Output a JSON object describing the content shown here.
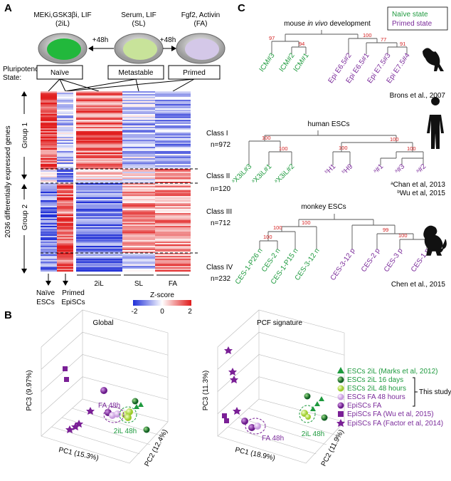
{
  "panel_a": {
    "label": "A",
    "conditions": [
      {
        "line1": "MEKi,GSK3βi, LIF",
        "line2": "(2iL)"
      },
      {
        "line1": "Serum, LIF",
        "line2": "(SL)"
      },
      {
        "line1": "Fgf2, Activin",
        "line2": "(FA)"
      }
    ],
    "arrow_labels": [
      "+48h",
      "+48h"
    ],
    "state_title": [
      "Pluripotency",
      "State:"
    ],
    "states": [
      "Naïve",
      "Metastable",
      "Primed"
    ],
    "y_label": "2036 differentially expressed genes",
    "groups": [
      "Group 1",
      "Group 2"
    ],
    "classes": [
      {
        "name": "Class I",
        "n": "n=972"
      },
      {
        "name": "Class II",
        "n": "n=120"
      },
      {
        "name": "Class III",
        "n": "n=712"
      },
      {
        "name": "Class IV",
        "n": "n=232"
      }
    ],
    "columns": [
      "2iL",
      "SL",
      "FA"
    ],
    "row_labels": [
      [
        "Naïve",
        "ESCs"
      ],
      [
        "Primed",
        "EpiSCs"
      ]
    ],
    "colorbar": {
      "title": "Z-score",
      "ticks": [
        -2,
        0,
        2
      ]
    }
  },
  "panel_c": {
    "label": "C",
    "legend": [
      "Naïve state",
      "Primed state"
    ],
    "trees": [
      {
        "title": [
          "mouse",
          "in vivo",
          "development"
        ],
        "leaves": [
          {
            "label": "ICM#3"
          },
          {
            "label": "ICM#2"
          },
          {
            "label": "ICM#1"
          },
          {
            "label": "Epi E6.5#2"
          },
          {
            "label": "Epi E6.5#1"
          },
          {
            "label": "Epi E7.5#3"
          },
          {
            "label": "Epi E7.5#4"
          }
        ],
        "bootstrap": [
          97,
          94,
          100,
          77,
          91
        ],
        "citations": [
          {
            "text": "Brons et al., 2007"
          }
        ]
      },
      {
        "title": [
          "human ESCs"
        ],
        "leaves": [
          {
            "sup": "a",
            "label": "X3iL#3"
          },
          {
            "sup": "a",
            "label": "X3iL#1"
          },
          {
            "sup": "a",
            "label": "X3iL#2"
          },
          {
            "sup": "b",
            "label": "H1"
          },
          {
            "sup": "b",
            "label": "H9"
          },
          {
            "sup": "a",
            "label": "#1"
          },
          {
            "sup": "a",
            "label": "#3"
          },
          {
            "sup": "a",
            "label": "#2"
          }
        ],
        "bootstrap": [
          100,
          100,
          100,
          100,
          100
        ],
        "citations": [
          {
            "sup": "a",
            "text": "Chan et al, 2013"
          },
          {
            "sup": "b",
            "text": "Wu et al, 2015"
          }
        ]
      },
      {
        "title": [
          "monkey ESCs"
        ],
        "leaves": [
          {
            "label": "CES-1-P26 n"
          },
          {
            "label": "CES-2 n"
          },
          {
            "label": "CES-1-P15 n"
          },
          {
            "label": "CES-3-12 n"
          },
          {
            "label": "CES-3-12 p"
          },
          {
            "label": "CES-2 p"
          },
          {
            "label": "CES-3 p"
          },
          {
            "label": "CES-1 p"
          }
        ],
        "bootstrap": [
          100,
          100,
          100,
          99,
          100
        ],
        "citations": [
          {
            "text": "Chen et al., 2015"
          }
        ]
      }
    ]
  },
  "panel_b": {
    "label": "B",
    "plots": [
      {
        "title": "Global",
        "pc1": "PC1 (15.3%)",
        "pc2": "PC2 (12.4%)",
        "pc3": "PC3 (9.97%)",
        "fa_label": "FA 48h",
        "il_label": "2iL 48h"
      },
      {
        "title": "PCF signature",
        "pc1": "PC1 (18.9%)",
        "pc2": "PC2 (11.9%)",
        "pc3": "PC3 (11.3%)",
        "fa_label": "FA 48h",
        "il_label": "2iL 48h"
      }
    ],
    "legend": [
      "ESCs 2iL (Marks et al, 2012)",
      "ESCs 2iL 16 days",
      "ESCs 2iL 48 hours",
      "ESCs FA 48 hours",
      "EpiSCs FA",
      "EpiSCs FA (Wu et al, 2015)",
      "EpiSCs FA (Factor et al, 2014)"
    ],
    "study_note": "This study"
  }
}
